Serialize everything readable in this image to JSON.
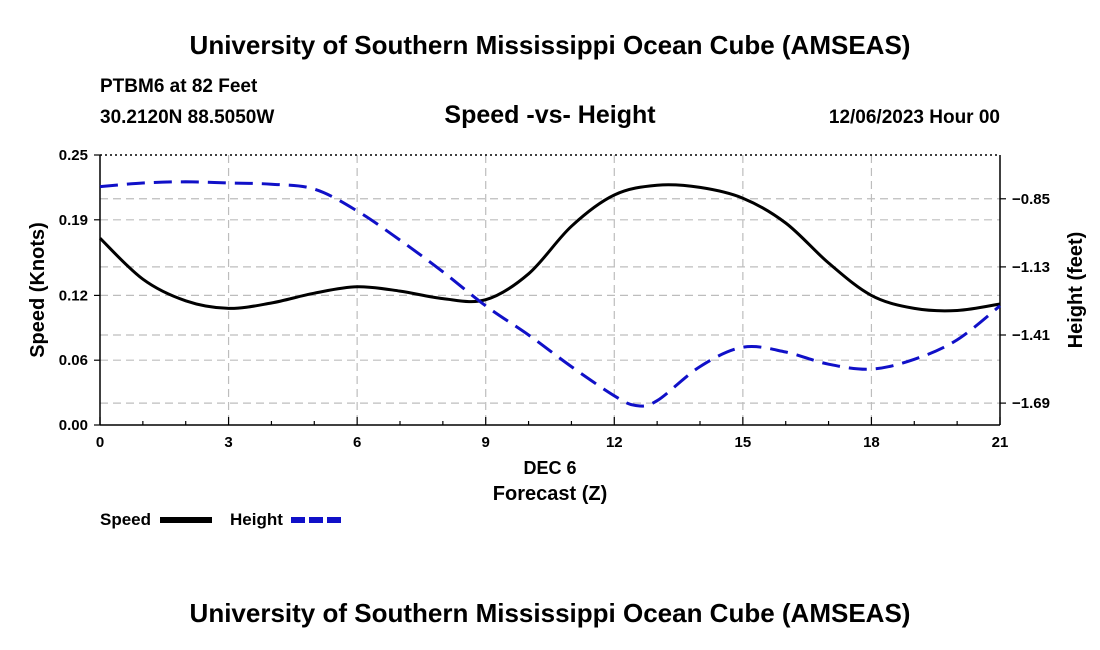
{
  "header": {
    "title": "University of Southern Mississippi Ocean Cube (AMSEAS)",
    "station": "PTBM6 at 82 Feet",
    "coords": "30.2120N  88.5050W",
    "datetime": "12/06/2023 Hour 00"
  },
  "footer": {
    "title": "University of Southern Mississippi Ocean Cube (AMSEAS)"
  },
  "chart_data": {
    "type": "line",
    "title": "Speed -vs- Height",
    "xlabel": "Forecast (Z)",
    "xlabel_date": "DEC 6",
    "ylabel_left": "Speed (Knots)",
    "ylabel_right": "Height (feet)",
    "xlim": [
      0,
      21
    ],
    "x_ticks": [
      0,
      3,
      6,
      9,
      12,
      15,
      18,
      21
    ],
    "x_tick_labels": [
      "0",
      "3",
      "6",
      "9",
      "12",
      "15",
      "18",
      "21"
    ],
    "ylim_left": [
      0,
      0.25
    ],
    "y_left_ticks": [
      0,
      0.06,
      0.12,
      0.19,
      0.25
    ],
    "y_left_tick_labels": [
      "0.00",
      "0.06",
      "0.12",
      "0.19",
      "0.25"
    ],
    "ylim_right": [
      -1.78,
      -0.67
    ],
    "y_right_ticks": [
      -0.85,
      -1.13,
      -1.41,
      -1.69
    ],
    "y_right_tick_labels": [
      "−0.85",
      "−1.13",
      "−1.41",
      "−1.69"
    ],
    "grid": true,
    "series": [
      {
        "name": "Speed",
        "axis": "left",
        "color": "#000000",
        "dashed": false,
        "x": [
          0,
          1,
          2,
          3,
          4,
          5,
          6,
          7,
          8,
          9,
          10,
          11,
          12,
          13,
          14,
          15,
          16,
          17,
          18,
          19,
          20,
          21
        ],
        "values": [
          0.173,
          0.135,
          0.115,
          0.108,
          0.113,
          0.122,
          0.128,
          0.124,
          0.117,
          0.116,
          0.14,
          0.184,
          0.213,
          0.222,
          0.22,
          0.21,
          0.187,
          0.15,
          0.12,
          0.108,
          0.106,
          0.112
        ]
      },
      {
        "name": "Height",
        "axis": "right",
        "color": "#1010c8",
        "dashed": true,
        "x": [
          0,
          1,
          2,
          3,
          4,
          5,
          6,
          7,
          8,
          9,
          10,
          11,
          12,
          12.5,
          13,
          14,
          15,
          16,
          17,
          18,
          19,
          20,
          21
        ],
        "values": [
          -0.8,
          -0.785,
          -0.78,
          -0.785,
          -0.79,
          -0.81,
          -0.9,
          -1.02,
          -1.15,
          -1.29,
          -1.41,
          -1.54,
          -1.66,
          -1.7,
          -1.68,
          -1.54,
          -1.46,
          -1.48,
          -1.53,
          -1.55,
          -1.51,
          -1.43,
          -1.29
        ]
      }
    ],
    "legend": {
      "placement": "bottom-left",
      "speed_label": "Speed",
      "height_label": "Height"
    }
  }
}
